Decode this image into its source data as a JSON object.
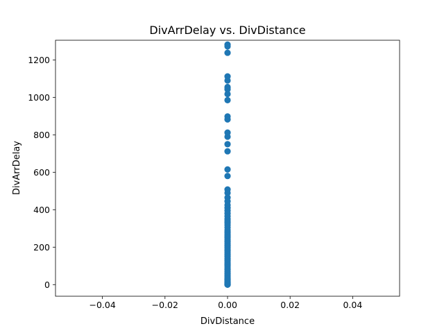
{
  "chart_data": {
    "type": "scatter",
    "title": "DivArrDelay vs. DivDistance",
    "xlabel": "DivDistance",
    "ylabel": "DivArrDelay",
    "xlim": [
      -0.055,
      0.055
    ],
    "ylim": [
      -62,
      1305
    ],
    "xticks": [
      -0.04,
      -0.02,
      0.0,
      0.02,
      0.04
    ],
    "xtick_labels": [
      "−0.04",
      "−0.02",
      "0.00",
      "0.02",
      "0.04"
    ],
    "yticks": [
      0,
      200,
      400,
      600,
      800,
      1000,
      1200
    ],
    "ytick_labels": [
      "0",
      "200",
      "400",
      "600",
      "800",
      "1000",
      "1200"
    ],
    "grid": false,
    "marker_color": "#1f77b4",
    "series": [
      {
        "name": "DivArrDelay",
        "x": [
          0,
          0,
          0,
          0,
          0,
          0,
          0,
          0,
          0,
          0,
          0,
          0,
          0,
          0,
          0,
          0,
          0,
          0,
          0,
          0,
          0,
          0,
          0,
          0,
          0,
          0,
          0,
          0,
          0,
          0,
          0,
          0,
          0,
          0,
          0,
          0,
          0,
          0,
          0,
          0,
          0,
          0,
          0,
          0,
          0,
          0,
          0,
          0,
          0,
          0,
          0,
          0,
          0,
          0,
          0,
          0,
          0,
          0,
          0,
          0,
          0,
          0,
          0,
          0,
          0,
          0,
          0,
          0,
          0,
          0,
          0,
          0,
          0
        ],
        "y": [
          1282,
          1272,
          1238,
          1112,
          1090,
          1055,
          1043,
          1018,
          985,
          898,
          882,
          812,
          790,
          750,
          712,
          615,
          580,
          508,
          490,
          465,
          445,
          425,
          410,
          395,
          380,
          365,
          350,
          340,
          330,
          318,
          305,
          292,
          280,
          270,
          260,
          250,
          240,
          230,
          220,
          210,
          200,
          190,
          180,
          170,
          160,
          150,
          140,
          130,
          120,
          110,
          100,
          90,
          80,
          70,
          60,
          50,
          42,
          35,
          28,
          22,
          15,
          10,
          5,
          2,
          0,
          0,
          1,
          3,
          8,
          12,
          18,
          25,
          30
        ]
      }
    ]
  }
}
